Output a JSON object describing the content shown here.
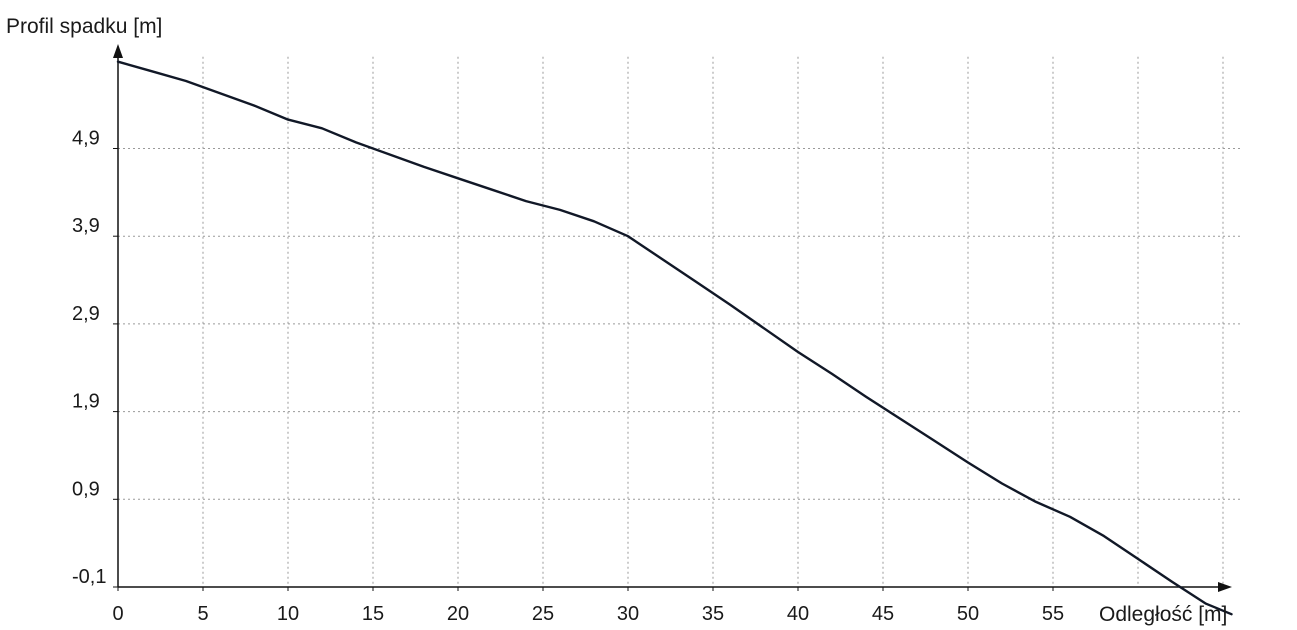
{
  "chart_data": {
    "type": "line",
    "title": "",
    "ylabel": "Profil spadku [m]",
    "xlabel": "Odległość [m]",
    "x_ticks": [
      0,
      5,
      10,
      15,
      20,
      25,
      30,
      35,
      40,
      45,
      50,
      55
    ],
    "x_tick_labels": [
      "0",
      "5",
      "10",
      "15",
      "20",
      "25",
      "30",
      "35",
      "40",
      "45",
      "50",
      "55"
    ],
    "y_ticks": [
      -0.1,
      0.9,
      1.9,
      2.9,
      3.9,
      4.9
    ],
    "y_tick_labels": [
      "-0,1",
      "0,9",
      "1,9",
      "2,9",
      "3,9",
      "4,9"
    ],
    "xlim": [
      0,
      66
    ],
    "ylim": [
      -0.1,
      5.9
    ],
    "grid": true,
    "legend": "none",
    "colors": {
      "line": "#111827",
      "grid": "#9a9a9a",
      "axis": "#111111",
      "text": "#1a1a1a"
    },
    "series": [
      {
        "x": [
          0,
          2,
          4,
          6,
          8,
          10,
          12,
          14,
          16,
          18,
          20,
          22,
          24,
          26,
          28,
          30,
          32,
          34,
          36,
          38,
          40,
          42,
          44,
          46,
          48,
          50,
          52,
          54,
          56,
          58,
          60,
          62,
          64,
          65.5
        ],
        "y": [
          5.89,
          5.78,
          5.67,
          5.53,
          5.39,
          5.23,
          5.13,
          4.97,
          4.83,
          4.69,
          4.56,
          4.43,
          4.3,
          4.2,
          4.07,
          3.9,
          3.64,
          3.38,
          3.12,
          2.85,
          2.58,
          2.33,
          2.07,
          1.82,
          1.57,
          1.32,
          1.08,
          0.87,
          0.7,
          0.48,
          0.22,
          -0.04,
          -0.29,
          -0.41
        ]
      }
    ]
  }
}
